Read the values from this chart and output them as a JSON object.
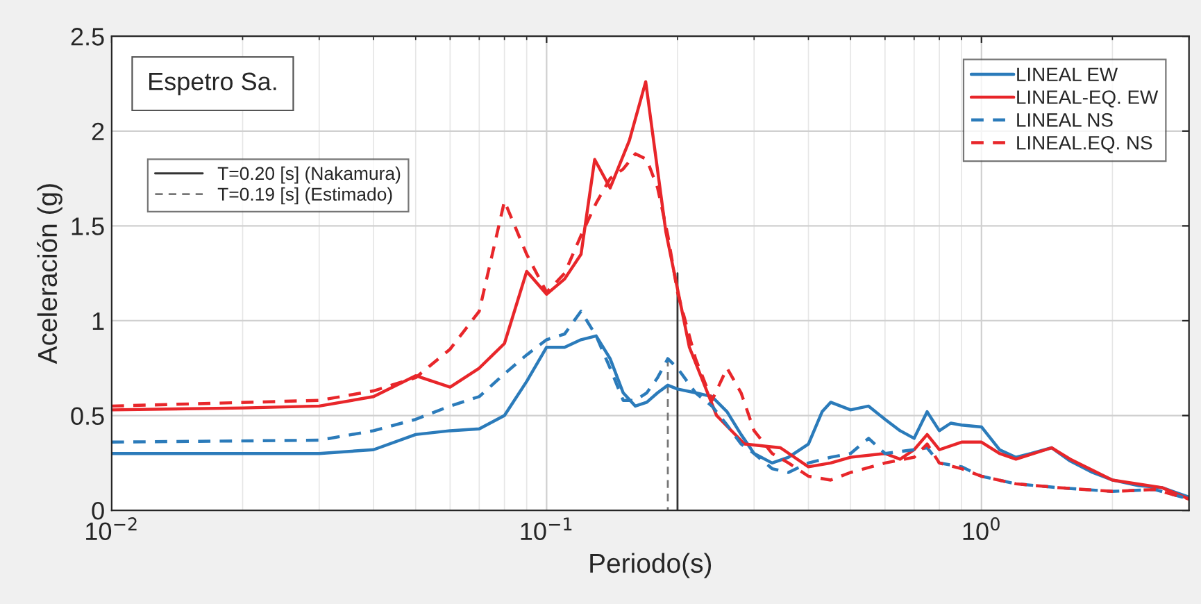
{
  "chart_data": {
    "type": "line",
    "xlabel": "Periodo(s)",
    "ylabel": "Aceleración (g)",
    "log": "x",
    "grid": true,
    "legend": "top right",
    "xlim": [
      0.01,
      3
    ],
    "xticks": [
      {
        "value": 0.01,
        "label": "10$^{−2}$"
      },
      {
        "value": 0.1,
        "label": "10$^{−1}$"
      },
      {
        "value": 1,
        "label": "10$^{0}$"
      }
    ],
    "ylim": [
      0,
      2.5
    ],
    "yticks": [
      0,
      0.5,
      1,
      1.5,
      2,
      2.5
    ],
    "annotations": [
      "Espetro Sa."
    ],
    "series": [
      {
        "name": "T=0.20 [s] (Nakamura)",
        "color": "#333333",
        "line_style": "solid",
        "x": [
          0.2,
          0.2
        ],
        "values": [
          0,
          1.25
        ]
      },
      {
        "name": "T=0.19 [s] (Estimado)",
        "color": "#777777",
        "line_style": "dashed",
        "x": [
          0.19,
          0.19
        ],
        "values": [
          0.8,
          0
        ]
      },
      {
        "name": "LINEAL EW",
        "color": "#2b7bba",
        "line_style": "solid",
        "x": [
          0.01,
          0.02,
          0.03,
          0.04,
          0.05,
          0.06,
          0.07,
          0.08,
          0.09,
          0.1,
          0.11,
          0.12,
          0.13,
          0.14,
          0.15,
          0.16,
          0.17,
          0.18,
          0.19,
          0.2,
          0.22,
          0.24,
          0.26,
          0.28,
          0.3,
          0.33,
          0.36,
          0.4,
          0.43,
          0.45,
          0.5,
          0.55,
          0.6,
          0.65,
          0.7,
          0.75,
          0.8,
          0.85,
          0.9,
          1.0,
          1.1,
          1.2,
          1.3,
          1.45,
          1.6,
          1.8,
          2.0,
          2.3,
          2.6,
          3.0
        ],
        "values": [
          0.3,
          0.3,
          0.3,
          0.32,
          0.4,
          0.42,
          0.43,
          0.5,
          0.68,
          0.86,
          0.86,
          0.9,
          0.92,
          0.8,
          0.62,
          0.55,
          0.57,
          0.62,
          0.66,
          0.64,
          0.62,
          0.6,
          0.52,
          0.4,
          0.3,
          0.25,
          0.28,
          0.35,
          0.52,
          0.57,
          0.53,
          0.55,
          0.48,
          0.42,
          0.38,
          0.52,
          0.42,
          0.46,
          0.45,
          0.44,
          0.32,
          0.28,
          0.3,
          0.33,
          0.26,
          0.2,
          0.16,
          0.13,
          0.12,
          0.07
        ]
      },
      {
        "name": "LINEAL-EQ. EW",
        "color": "#e8262a",
        "line_style": "solid",
        "x": [
          0.01,
          0.02,
          0.03,
          0.04,
          0.05,
          0.06,
          0.07,
          0.08,
          0.09,
          0.1,
          0.11,
          0.12,
          0.129,
          0.14,
          0.155,
          0.169,
          0.188,
          0.213,
          0.246,
          0.285,
          0.345,
          0.4,
          0.45,
          0.5,
          0.6,
          0.65,
          0.7,
          0.75,
          0.8,
          0.9,
          1.0,
          1.1,
          1.2,
          1.45,
          1.6,
          2.0,
          2.6,
          3.0
        ],
        "values": [
          0.53,
          0.54,
          0.55,
          0.6,
          0.71,
          0.65,
          0.75,
          0.88,
          1.26,
          1.14,
          1.22,
          1.35,
          1.85,
          1.7,
          1.95,
          2.26,
          1.47,
          0.86,
          0.5,
          0.35,
          0.33,
          0.23,
          0.25,
          0.28,
          0.3,
          0.27,
          0.32,
          0.4,
          0.32,
          0.36,
          0.36,
          0.3,
          0.27,
          0.33,
          0.27,
          0.16,
          0.12,
          0.06
        ]
      },
      {
        "name": "LINEAL NS",
        "color": "#2b7bba",
        "line_style": "dashed",
        "x": [
          0.01,
          0.03,
          0.04,
          0.05,
          0.06,
          0.07,
          0.08,
          0.09,
          0.1,
          0.11,
          0.12,
          0.13,
          0.14,
          0.15,
          0.16,
          0.17,
          0.18,
          0.19,
          0.2,
          0.22,
          0.24,
          0.26,
          0.28,
          0.3,
          0.33,
          0.36,
          0.4,
          0.45,
          0.5,
          0.55,
          0.6,
          0.7,
          0.75,
          0.8,
          0.9,
          1.0,
          1.2,
          1.5,
          2.0,
          2.5,
          3.0
        ],
        "values": [
          0.36,
          0.37,
          0.42,
          0.48,
          0.55,
          0.6,
          0.72,
          0.82,
          0.9,
          0.93,
          1.05,
          0.92,
          0.75,
          0.58,
          0.58,
          0.62,
          0.7,
          0.8,
          0.75,
          0.62,
          0.55,
          0.45,
          0.35,
          0.3,
          0.22,
          0.2,
          0.25,
          0.28,
          0.3,
          0.38,
          0.3,
          0.32,
          0.33,
          0.25,
          0.23,
          0.18,
          0.14,
          0.12,
          0.1,
          0.11,
          0.06
        ]
      },
      {
        "name": "LINEAL.EQ. NS",
        "color": "#e8262a",
        "line_style": "dashed",
        "x": [
          0.01,
          0.03,
          0.04,
          0.05,
          0.06,
          0.07,
          0.08,
          0.09,
          0.1,
          0.11,
          0.12,
          0.13,
          0.14,
          0.15,
          0.16,
          0.17,
          0.18,
          0.19,
          0.2,
          0.22,
          0.24,
          0.26,
          0.28,
          0.3,
          0.33,
          0.36,
          0.4,
          0.45,
          0.5,
          0.6,
          0.7,
          0.75,
          0.8,
          0.9,
          1.0,
          1.2,
          1.5,
          2.0,
          2.5,
          3.0
        ],
        "values": [
          0.55,
          0.58,
          0.63,
          0.7,
          0.85,
          1.05,
          1.63,
          1.35,
          1.15,
          1.25,
          1.45,
          1.62,
          1.75,
          1.8,
          1.88,
          1.85,
          1.7,
          1.45,
          1.15,
          0.8,
          0.58,
          0.75,
          0.62,
          0.42,
          0.3,
          0.25,
          0.18,
          0.16,
          0.2,
          0.25,
          0.28,
          0.35,
          0.25,
          0.22,
          0.18,
          0.14,
          0.12,
          0.1,
          0.11,
          0.06
        ]
      }
    ]
  }
}
